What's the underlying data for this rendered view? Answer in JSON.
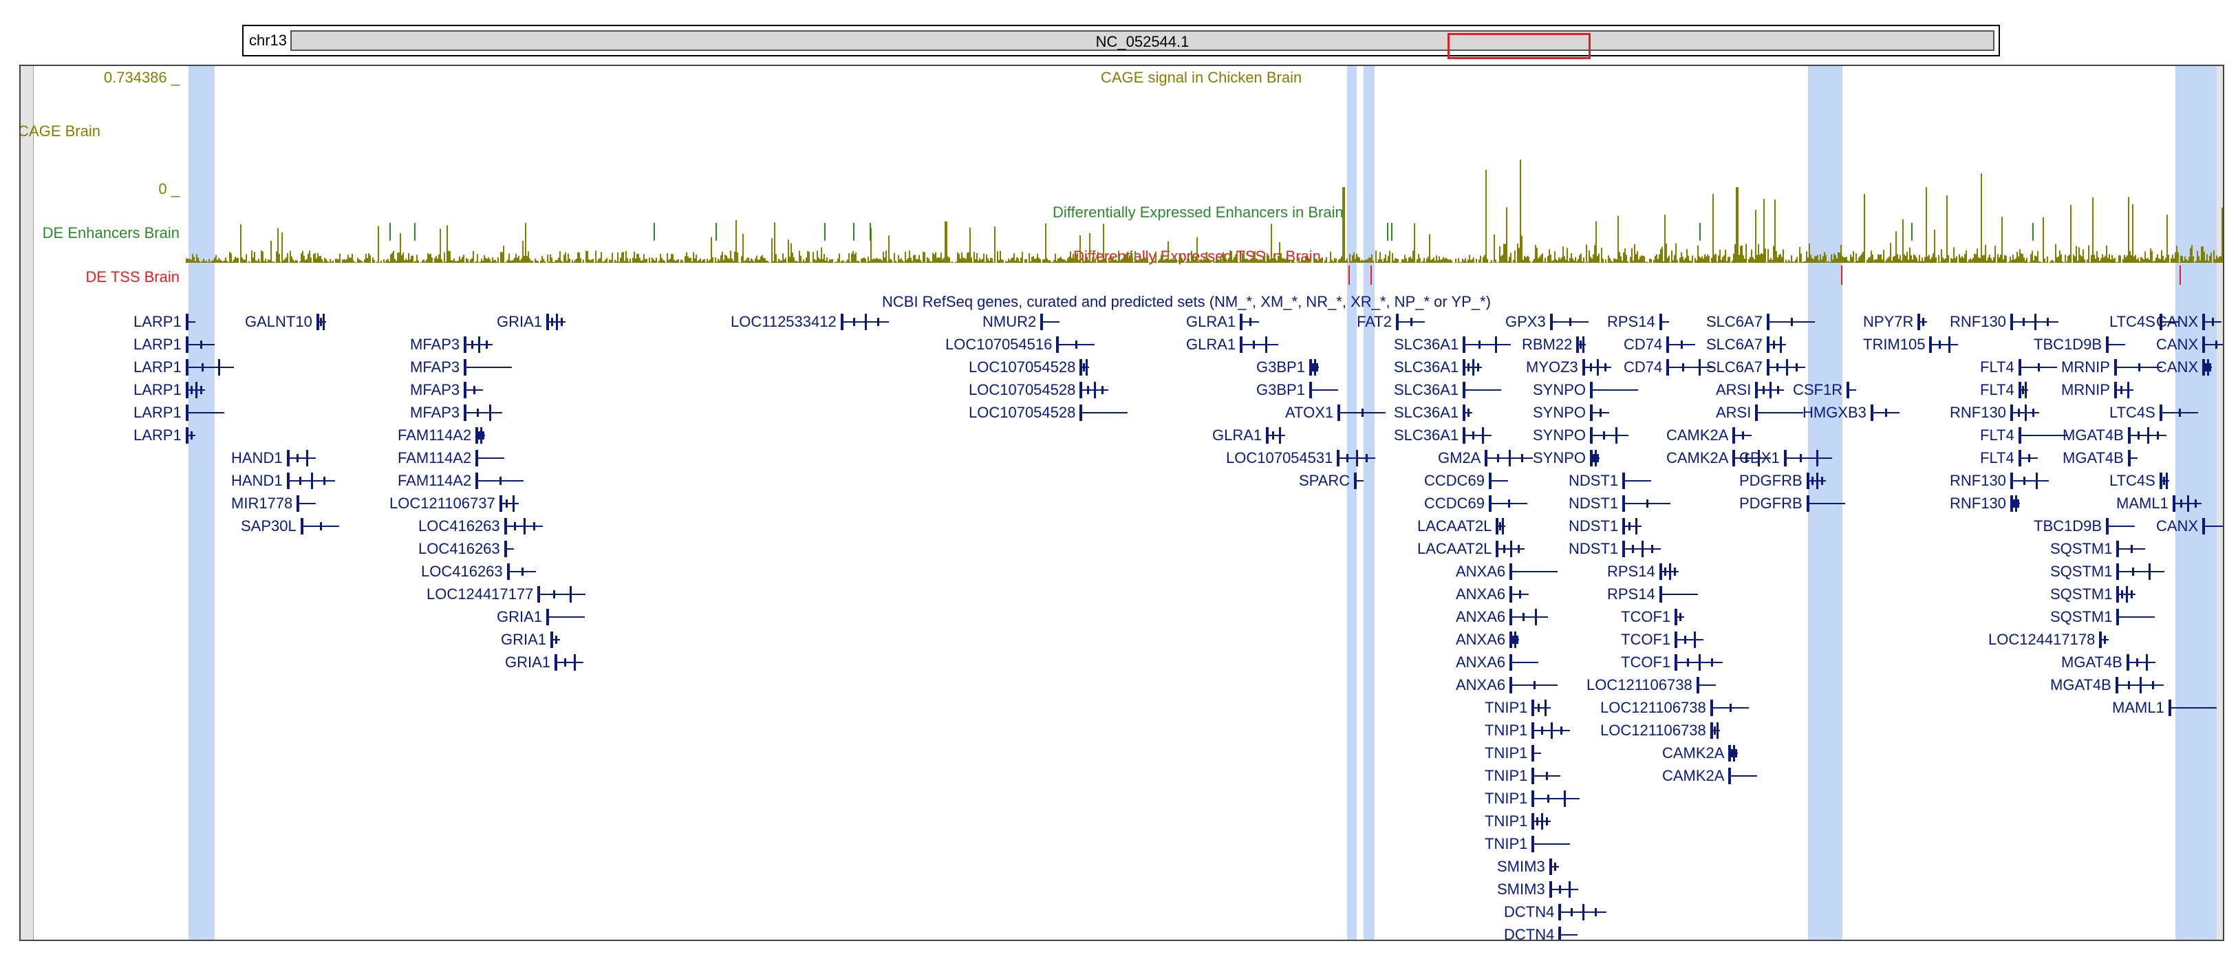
{
  "ideogram": {
    "chrom": "chr13",
    "contig": "NC_052544.1"
  },
  "tracks": {
    "cage": {
      "side_label": "CAGE Brain",
      "max_label": "0.734386 _",
      "min_label": "0 _",
      "title": "CAGE signal in Chicken Brain",
      "color": "#808000"
    },
    "enh": {
      "side_label": "DE Enhancers Brain",
      "title": "Differentially Expressed Enhancers in Brain",
      "color": "#2a8a2a"
    },
    "tss": {
      "side_label": "DE TSS Brain",
      "title": "Differentially Expressed TSS in Brain",
      "color": "#e02020"
    },
    "refseq": {
      "title": "NCBI RefSeq genes, curated and predicted sets (NM_*, XM_*, NR_*, XR_*, NP_* or YP_*)",
      "color": "#0a1a7a"
    }
  },
  "genes": [
    {
      "label": "LARP1"
    },
    {
      "label": "LARP1"
    },
    {
      "label": "LARP1"
    },
    {
      "label": "LARP1"
    },
    {
      "label": "LARP1"
    },
    {
      "label": "LARP1"
    },
    {
      "label": "HAND1"
    },
    {
      "label": "HAND1"
    },
    {
      "label": "MIR1778"
    },
    {
      "label": "SAP30L"
    },
    {
      "label": "GALNT10"
    },
    {
      "label": "MFAP3"
    },
    {
      "label": "MFAP3"
    },
    {
      "label": "MFAP3"
    },
    {
      "label": "MFAP3"
    },
    {
      "label": "FAM114A2"
    },
    {
      "label": "FAM114A2"
    },
    {
      "label": "FAM114A2"
    },
    {
      "label": "LOC121106737"
    },
    {
      "label": "LOC416263"
    },
    {
      "label": "LOC416263"
    },
    {
      "label": "LOC416263"
    },
    {
      "label": "LOC124417177"
    },
    {
      "label": "GRIA1"
    },
    {
      "label": "GRIA1"
    },
    {
      "label": "GRIA1"
    },
    {
      "label": "GRIA1"
    },
    {
      "label": "LOC112533412"
    },
    {
      "label": "NMUR2"
    },
    {
      "label": "LOC107054516"
    },
    {
      "label": "LOC107054528"
    },
    {
      "label": "LOC107054528"
    },
    {
      "label": "LOC107054528"
    },
    {
      "label": "GLRA1"
    },
    {
      "label": "GLRA1"
    },
    {
      "label": "G3BP1"
    },
    {
      "label": "G3BP1"
    },
    {
      "label": "ATOX1"
    },
    {
      "label": "GLRA1"
    },
    {
      "label": "LOC107054531"
    },
    {
      "label": "SPARC"
    },
    {
      "label": "FAT2"
    },
    {
      "label": "SLC36A1"
    },
    {
      "label": "SLC36A1"
    },
    {
      "label": "SLC36A1"
    },
    {
      "label": "SLC36A1"
    },
    {
      "label": "SLC36A1"
    },
    {
      "label": "GM2A"
    },
    {
      "label": "CCDC69"
    },
    {
      "label": "CCDC69"
    },
    {
      "label": "LACAAT2L"
    },
    {
      "label": "LACAAT2L"
    },
    {
      "label": "ANXA6"
    },
    {
      "label": "ANXA6"
    },
    {
      "label": "ANXA6"
    },
    {
      "label": "ANXA6"
    },
    {
      "label": "ANXA6"
    },
    {
      "label": "ANXA6"
    },
    {
      "label": "TNIP1"
    },
    {
      "label": "TNIP1"
    },
    {
      "label": "TNIP1"
    },
    {
      "label": "TNIP1"
    },
    {
      "label": "TNIP1"
    },
    {
      "label": "TNIP1"
    },
    {
      "label": "TNIP1"
    },
    {
      "label": "SMIM3"
    },
    {
      "label": "SMIM3"
    },
    {
      "label": "DCTN4"
    },
    {
      "label": "DCTN4"
    },
    {
      "label": "GPX3"
    },
    {
      "label": "RBM22"
    },
    {
      "label": "MYOZ3"
    },
    {
      "label": "SYNPO"
    },
    {
      "label": "SYNPO"
    },
    {
      "label": "SYNPO"
    },
    {
      "label": "SYNPO"
    },
    {
      "label": "NDST1"
    },
    {
      "label": "NDST1"
    },
    {
      "label": "NDST1"
    },
    {
      "label": "NDST1"
    },
    {
      "label": "RPS14"
    },
    {
      "label": "CD74"
    },
    {
      "label": "CD74"
    },
    {
      "label": "RPS14"
    },
    {
      "label": "RPS14"
    },
    {
      "label": "TCOF1"
    },
    {
      "label": "TCOF1"
    },
    {
      "label": "TCOF1"
    },
    {
      "label": "LOC121106738"
    },
    {
      "label": "LOC121106738"
    },
    {
      "label": "LOC121106738"
    },
    {
      "label": "ARSI"
    },
    {
      "label": "ARSI"
    },
    {
      "label": "CAMK2A"
    },
    {
      "label": "CAMK2A"
    },
    {
      "label": "CAMK2A"
    },
    {
      "label": "CAMK2A"
    },
    {
      "label": "SLC6A7"
    },
    {
      "label": "SLC6A7"
    },
    {
      "label": "SLC6A7"
    },
    {
      "label": "CSF1R"
    },
    {
      "label": "HMGXB3"
    },
    {
      "label": "CDX1"
    },
    {
      "label": "PDGFRB"
    },
    {
      "label": "PDGFRB"
    },
    {
      "label": "NPY7R"
    },
    {
      "label": "TRIM105"
    },
    {
      "label": "RNF130"
    },
    {
      "label": "TBC1D9B"
    },
    {
      "label": "FLT4"
    },
    {
      "label": "FLT4"
    },
    {
      "label": "RNF130"
    },
    {
      "label": "FLT4"
    },
    {
      "label": "FLT4"
    },
    {
      "label": "RNF130"
    },
    {
      "label": "RNF130"
    },
    {
      "label": "TBC1D9B"
    },
    {
      "label": "MRNIP"
    },
    {
      "label": "MRNIP"
    },
    {
      "label": "MGAT4B"
    },
    {
      "label": "MGAT4B"
    },
    {
      "label": "SQSTM1"
    },
    {
      "label": "SQSTM1"
    },
    {
      "label": "SQSTM1"
    },
    {
      "label": "SQSTM1"
    },
    {
      "label": "LOC124417178"
    },
    {
      "label": "MGAT4B"
    },
    {
      "label": "MGAT4B"
    },
    {
      "label": "LTC4S"
    },
    {
      "label": "LTC4S"
    },
    {
      "label": "LTC4S"
    },
    {
      "label": "MAML1"
    },
    {
      "label": "MAML1"
    },
    {
      "label": "CANX"
    },
    {
      "label": "CANX"
    },
    {
      "label": "CANX"
    },
    {
      "label": "CANX"
    }
  ]
}
